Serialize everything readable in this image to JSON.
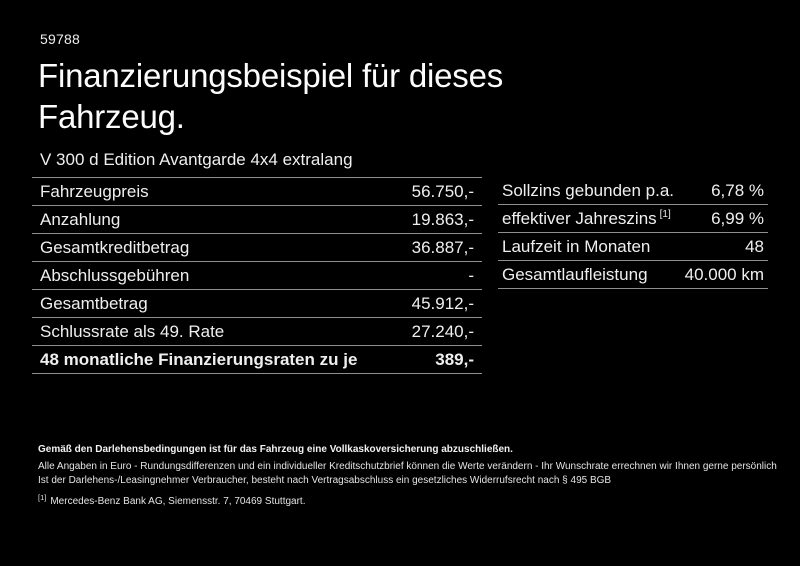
{
  "header": {
    "listing_id": "59788",
    "title_line1": "Finanzierungsbeispiel für dieses",
    "title_line2": "Fahrzeug.",
    "vehicle_name": "V 300 d Edition Avantgarde 4x4 extralang"
  },
  "finance_table": {
    "rows": [
      {
        "label": "Fahrzeugpreis",
        "value": "56.750,-"
      },
      {
        "label": "Anzahlung",
        "value": "19.863,-"
      },
      {
        "label": "Gesamtkreditbetrag",
        "value": "36.887,-"
      },
      {
        "label": "Abschlussgebühren",
        "value": "-"
      },
      {
        "label": "Gesamtbetrag",
        "value": "45.912,-"
      },
      {
        "label": "Schlussrate als 49. Rate",
        "value": "27.240,-"
      }
    ],
    "highlight_row": {
      "label": "48 monatliche Finanzierungsraten zu je",
      "value": "389,-"
    }
  },
  "conditions_table": {
    "rows": [
      {
        "label": "Sollzins gebunden p.a.",
        "sup": "",
        "value": "6,78 %"
      },
      {
        "label": "effektiver Jahreszins",
        "sup": "[1]",
        "value": "6,99 %"
      },
      {
        "label": "Laufzeit in Monaten",
        "sup": "",
        "value": "48"
      },
      {
        "label": "Gesamtlaufleistung",
        "sup": "",
        "value": "40.000 km"
      }
    ]
  },
  "footer": {
    "bold_note": "Gemäß den Darlehensbedingungen ist für das Fahrzeug eine Vollkaskoversicherung abzuschließen.",
    "note2": "Alle Angaben in Euro - Rundungsdifferenzen und ein individueller Kreditschutzbrief können die Werte verändern - Ihr Wunschrate errechnen wir Ihnen gerne persönlich",
    "note3": "Ist der Darlehens-/Leasingnehmer Verbraucher, besteht nach Vertragsabschluss ein gesetzliches Widerrufsrecht nach § 495 BGB",
    "footnote_marker": "[1]",
    "footnote_text": "Mercedes-Benz Bank AG, Siemensstr. 7, 70469 Stuttgart."
  },
  "colors": {
    "background": "#000000",
    "text": "#f0f0f0",
    "divider": "#8f8f8f"
  }
}
